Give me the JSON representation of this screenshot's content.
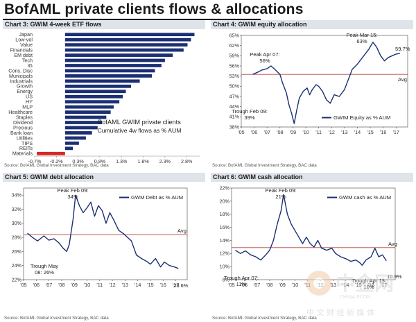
{
  "page": {
    "title": "BofAML private clients flows & allocations"
  },
  "colors": {
    "line": "#1b2f73",
    "avg": "#b8433a",
    "bar": "#1b2f73",
    "negative_bar": "#d62828",
    "title_band": "#dfe3ea"
  },
  "watermark": {
    "cn_text": "中 文 财 经 新 媒 体",
    "latin_text": "CHINA ECON",
    "big_text": "中金网"
  },
  "chart_data": [
    {
      "id": "chart3",
      "type": "bar",
      "orientation": "horizontal",
      "title": "Chart 3: GWIM 4-week ETF flows",
      "source": "Source: BofAML Global Investment Strategy, BAC data",
      "categories": [
        "Japan",
        "Low-vol",
        "Value",
        "Financials",
        "EM debt",
        "Tech",
        "IG",
        "Cons. Disc",
        "Municipals",
        "Industrials",
        "Growth",
        "Energy",
        "US",
        "HY",
        "MLP",
        "Healthcare",
        "Staples",
        "Dividend",
        "Precious",
        "Bank loan",
        "Utilities",
        "TIPS",
        "REITs",
        "Materials"
      ],
      "values": [
        2.98,
        2.9,
        2.82,
        2.73,
        2.48,
        2.3,
        2.22,
        2.07,
        2.0,
        1.72,
        1.52,
        1.4,
        1.33,
        1.25,
        1.12,
        1.05,
        0.95,
        0.85,
        0.75,
        0.62,
        0.48,
        0.32,
        0.18,
        -0.65
      ],
      "x_ticks": [
        "-0.7%",
        "-0.2%",
        "0.3%",
        "0.8%",
        "1.3%",
        "1.8%",
        "2.3%",
        "2.8%"
      ],
      "xlim": [
        -0.7,
        3.1
      ],
      "annotation": [
        "BofAML GWIM private clients",
        "Cumulative 4w flows as % AUM"
      ]
    },
    {
      "id": "chart4",
      "type": "line",
      "title": "Chart 4: GWIM equity allocation",
      "source": "Source: BofAML Global Investment Strategy, BAC data",
      "x_ticks": [
        "'05",
        "'06",
        "'07",
        "'08",
        "'09",
        "'10",
        "'11",
        "'12",
        "'13",
        "'14",
        "'15",
        "'16",
        "'17"
      ],
      "y_ticks": [
        "38%",
        "41%",
        "44%",
        "47%",
        "50%",
        "53%",
        "56%",
        "59%",
        "62%",
        "65%"
      ],
      "ylim": [
        38,
        65
      ],
      "avg_value": 53.5,
      "avg_label": "Avg",
      "legend": "GWIM Equity as % AUM",
      "annotations": {
        "peak": [
          "Peak Apr 07:",
          "56%"
        ],
        "trough": [
          "Trough Feb 09:",
          "39%"
        ],
        "peak2": [
          "Peak Mar 15:",
          "63%"
        ],
        "last": "59.7%"
      },
      "series": [
        {
          "name": "GWIM Equity as % AUM",
          "x": [
            2005.9,
            2006.3,
            2006.6,
            2007.0,
            2007.3,
            2007.6,
            2008.0,
            2008.2,
            2008.5,
            2008.7,
            2008.9,
            2009.1,
            2009.3,
            2009.5,
            2009.8,
            2010.1,
            2010.3,
            2010.5,
            2010.8,
            2011.0,
            2011.3,
            2011.6,
            2011.9,
            2012.2,
            2012.6,
            2013.0,
            2013.3,
            2013.6,
            2014.0,
            2014.3,
            2014.6,
            2014.9,
            2015.2,
            2015.5,
            2015.8,
            2016.1,
            2016.4,
            2016.7,
            2017.0,
            2017.3
          ],
          "y": [
            53.5,
            54.2,
            54.8,
            55.2,
            56.0,
            55.0,
            53.5,
            51.0,
            48.0,
            44.5,
            42.0,
            39.0,
            43.0,
            46.5,
            48.5,
            49.5,
            47.5,
            49.0,
            50.5,
            50.0,
            48.5,
            46.0,
            45.0,
            47.5,
            47.0,
            49.0,
            52.0,
            55.0,
            56.5,
            58.0,
            59.5,
            61.0,
            63.0,
            61.5,
            59.0,
            57.5,
            58.5,
            59.0,
            59.5,
            59.7
          ]
        }
      ]
    },
    {
      "id": "chart5",
      "type": "line",
      "title": "Chart 5: GWIM debt allocation",
      "source": "Source: BofAML Global Investment Strategy, BAC data",
      "x_ticks": [
        "'05",
        "'06",
        "'07",
        "'08",
        "'09",
        "'10",
        "'11",
        "'12",
        "'13",
        "'14",
        "'15",
        "'16",
        "'17"
      ],
      "y_ticks": [
        "22%",
        "24%",
        "26%",
        "28%",
        "30%",
        "32%",
        "34%"
      ],
      "ylim": [
        22,
        35
      ],
      "avg_value": 28.4,
      "avg_label": "Avg",
      "legend": "GWM Debt as % AUM",
      "annotations": {
        "peak": [
          "Peak Feb 09:",
          "34%"
        ],
        "trough": [
          "Trough May",
          "08: 26%"
        ],
        "last": "23.6%"
      },
      "series": [
        {
          "name": "GWM Debt as % AUM",
          "x": [
            2005.3,
            2005.7,
            2006.1,
            2006.6,
            2007.0,
            2007.4,
            2007.8,
            2008.1,
            2008.4,
            2008.6,
            2008.9,
            2009.1,
            2009.4,
            2009.7,
            2010.0,
            2010.3,
            2010.6,
            2010.9,
            2011.2,
            2011.5,
            2011.8,
            2012.1,
            2012.5,
            2012.9,
            2013.2,
            2013.5,
            2013.9,
            2014.3,
            2014.7,
            2015.0,
            2015.4,
            2015.8,
            2016.1,
            2016.5,
            2016.9,
            2017.2
          ],
          "y": [
            28.6,
            28.0,
            27.5,
            28.2,
            27.6,
            27.8,
            27.2,
            26.5,
            26.0,
            27.0,
            30.5,
            34.0,
            32.5,
            31.5,
            32.2,
            33.0,
            31.0,
            32.5,
            31.8,
            30.0,
            31.5,
            30.5,
            29.0,
            28.5,
            28.0,
            27.5,
            25.5,
            25.0,
            24.6,
            24.2,
            25.0,
            23.8,
            24.5,
            24.0,
            23.8,
            23.6
          ]
        }
      ]
    },
    {
      "id": "chart6",
      "type": "line",
      "title": "Chart 6: GWIM cash allocation",
      "source": "Source: BofAML Global Investment Strategy, BAC data",
      "x_ticks": [
        "'05",
        "'06",
        "'07",
        "'08",
        "'09",
        "'10",
        "'11",
        "'12",
        "'13",
        "'14",
        "'15",
        "'16",
        "'17"
      ],
      "y_ticks": [
        "8%",
        "10%",
        "12%",
        "14%",
        "16%",
        "18%",
        "20%",
        "22%"
      ],
      "ylim": [
        8,
        22
      ],
      "avg_value": 12.9,
      "avg_label": "Avg",
      "legend": "GWM cash as % AUM",
      "annotations": {
        "peak": [
          "Peak Feb 09:",
          "21%"
        ],
        "trough": [
          "Trough Apr 07:",
          "11%"
        ],
        "trough2": [
          "Trough Apr 15:",
          "10%"
        ],
        "last": "10.9%"
      },
      "series": [
        {
          "name": "GWM cash as % AUM",
          "x": [
            2005.3,
            2005.7,
            2006.1,
            2006.5,
            2006.9,
            2007.3,
            2007.7,
            2008.0,
            2008.3,
            2008.6,
            2008.9,
            2009.1,
            2009.4,
            2009.7,
            2010.0,
            2010.3,
            2010.6,
            2010.9,
            2011.2,
            2011.5,
            2011.8,
            2012.1,
            2012.5,
            2012.9,
            2013.2,
            2013.6,
            2014.0,
            2014.4,
            2014.8,
            2015.1,
            2015.3,
            2015.6,
            2016.0,
            2016.3,
            2016.6,
            2016.9,
            2017.2
          ],
          "y": [
            12.5,
            12.0,
            12.4,
            11.8,
            11.5,
            11.0,
            11.8,
            12.5,
            14.0,
            16.5,
            18.5,
            21.0,
            18.0,
            16.5,
            15.5,
            14.5,
            13.5,
            14.5,
            13.5,
            13.0,
            14.0,
            12.8,
            12.5,
            12.8,
            12.0,
            11.5,
            11.2,
            10.8,
            11.0,
            10.6,
            10.2,
            11.0,
            11.5,
            12.8,
            11.5,
            11.8,
            10.9
          ]
        }
      ]
    }
  ]
}
